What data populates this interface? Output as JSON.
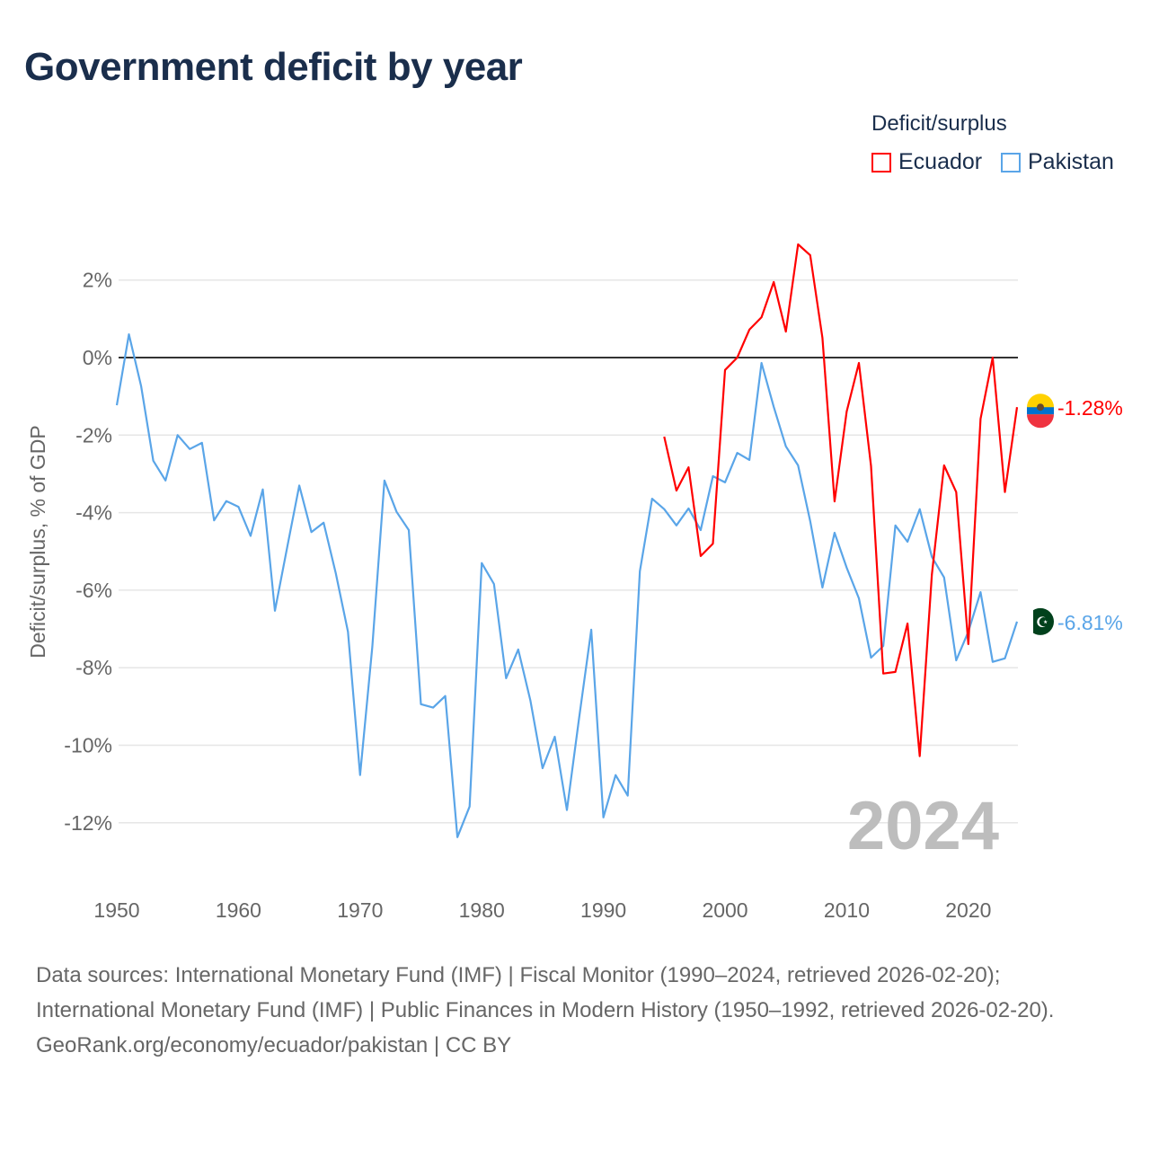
{
  "title": "Government deficit by year",
  "legend": {
    "title": "Deficit/surplus",
    "items": [
      {
        "name": "Ecuador",
        "color": "#ff0000"
      },
      {
        "name": "Pakistan",
        "color": "#5aa5e8"
      }
    ]
  },
  "footer": {
    "sources": "Data sources: International Monetary Fund (IMF) | Fiscal Monitor (1990–2024, retrieved 2026-02-20); International Monetary Fund (IMF) | Public Finances in Modern History (1950–1992, retrieved 2026-02-20).",
    "credit": "GeoRank.org/economy/ecuador/pakistan | CC BY"
  },
  "chart_data": {
    "type": "line",
    "title": "Government deficit by year",
    "xlabel": "",
    "ylabel": "Deficit/surplus, % of GDP",
    "xlim": [
      1950,
      2024
    ],
    "ylim": [
      -12,
      2
    ],
    "xticks": [
      1950,
      1960,
      1970,
      1980,
      1990,
      2000,
      2010,
      2020
    ],
    "xtick_labels": [
      "1950",
      "1960",
      "1970",
      "1980",
      "1990",
      "2000",
      "2010",
      "2020"
    ],
    "yticks": [
      2,
      0,
      -2,
      -4,
      -6,
      -8,
      -10,
      -12
    ],
    "ytick_labels": [
      "2%",
      "0%",
      "-2%",
      "-4%",
      "-6%",
      "-8%",
      "-10%",
      "-12%"
    ],
    "year_label": "2024",
    "grid": true,
    "legend_position": "top-right",
    "series": [
      {
        "name": "Ecuador",
        "color": "#ff0000",
        "end_label": "-1.28%",
        "start_year": 1995,
        "values": [
          -2.04,
          -3.43,
          -2.83,
          -5.12,
          -4.8,
          -0.32,
          0.0,
          0.72,
          1.04,
          1.95,
          0.67,
          2.92,
          2.64,
          0.51,
          -3.71,
          -1.39,
          -0.14,
          -2.8,
          -8.15,
          -8.11,
          -6.86,
          -10.28,
          -5.6,
          -2.78,
          -3.47,
          -7.39,
          -1.58,
          0.0,
          -3.47,
          -1.28
        ]
      },
      {
        "name": "Pakistan",
        "color": "#5aa5e8",
        "end_label": "-6.81%",
        "start_year": 1950,
        "values": [
          -1.23,
          0.6,
          -0.74,
          -2.66,
          -3.17,
          -2.0,
          -2.36,
          -2.2,
          -4.2,
          -3.7,
          -3.85,
          -4.6,
          -3.4,
          -6.53,
          -4.9,
          -3.3,
          -4.5,
          -4.26,
          -5.56,
          -7.07,
          -10.77,
          -7.46,
          -3.17,
          -3.98,
          -4.45,
          -8.94,
          -9.03,
          -8.73,
          -12.37,
          -11.58,
          -5.3,
          -5.84,
          -8.27,
          -7.53,
          -8.85,
          -10.59,
          -9.78,
          -11.67,
          -9.31,
          -7.02,
          -11.86,
          -10.77,
          -11.3,
          -5.51,
          -3.64,
          -3.91,
          -4.33,
          -3.89,
          -4.45,
          -3.06,
          -3.22,
          -2.46,
          -2.64,
          -0.14,
          -1.27,
          -2.29,
          -2.78,
          -4.22,
          -5.93,
          -4.52,
          -5.42,
          -6.21,
          -7.74,
          -7.44,
          -4.33,
          -4.75,
          -3.91,
          -5.14,
          -5.67,
          -7.81,
          -7.07,
          -6.05,
          -7.85,
          -7.76,
          -6.81
        ]
      }
    ]
  }
}
